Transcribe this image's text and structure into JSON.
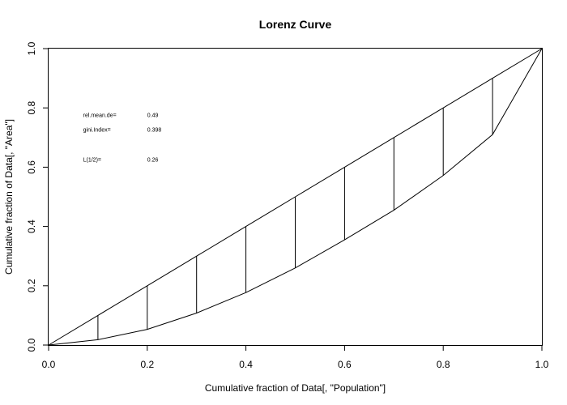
{
  "chart_data": {
    "type": "line",
    "title": "Lorenz Curve",
    "xlabel": "Cumulative fraction of Data[, \"Population\"]",
    "ylabel": "Cumulative fraction of Data[, \"Area\"]",
    "xlim": [
      0,
      1
    ],
    "ylim": [
      0,
      1
    ],
    "x_ticks": [
      "0.0",
      "0.2",
      "0.4",
      "0.6",
      "0.8",
      "1.0"
    ],
    "y_ticks": [
      "0.0",
      "0.2",
      "0.4",
      "0.6",
      "0.8",
      "1.0"
    ],
    "x_tick_values": [
      0,
      0.2,
      0.4,
      0.6,
      0.8,
      1.0
    ],
    "y_tick_values": [
      0,
      0.2,
      0.4,
      0.6,
      0.8,
      1.0
    ],
    "grid": false,
    "equality_line": {
      "x": [
        0,
        0.1,
        0.2,
        0.3,
        0.4,
        0.5,
        0.6,
        0.7,
        0.8,
        0.9,
        1.0
      ],
      "y": [
        0,
        0.1,
        0.2,
        0.3,
        0.4,
        0.5,
        0.6,
        0.7,
        0.8,
        0.9,
        1.0
      ]
    },
    "lorenz_curve": {
      "x": [
        0,
        0.1,
        0.2,
        0.3,
        0.4,
        0.5,
        0.6,
        0.7,
        0.8,
        0.9,
        1.0
      ],
      "y": [
        0,
        0.018,
        0.053,
        0.108,
        0.177,
        0.26,
        0.355,
        0.455,
        0.572,
        0.71,
        1.0
      ]
    },
    "stats": [
      {
        "label": "rel.mean.de=",
        "value": "0.49"
      },
      {
        "label": "gini.Index=",
        "value": "0.398"
      },
      {
        "label": "L(1/2)=",
        "value": "0.26"
      }
    ],
    "stats_y": [
      0.775,
      0.725,
      0.625
    ],
    "stats_x_label": 0.07,
    "stats_x_value": 0.2
  }
}
